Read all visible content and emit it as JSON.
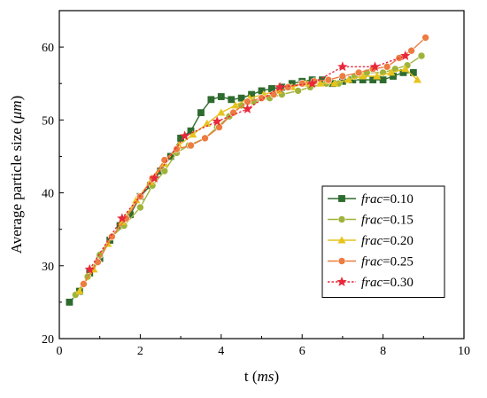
{
  "chart_data": {
    "type": "line",
    "title": "",
    "xlabel": {
      "prefix": "t (",
      "italic": "ms",
      "suffix": ")"
    },
    "ylabel": {
      "prefix": "Average particle size (",
      "italic": "μm",
      "suffix": ")"
    },
    "xlim": [
      0,
      10
    ],
    "ylim": [
      20,
      65
    ],
    "xticks": [
      0,
      2,
      4,
      6,
      8,
      10
    ],
    "yticks": [
      20,
      30,
      40,
      50,
      60
    ],
    "grid": false,
    "legend_position": "right-middle",
    "series": [
      {
        "name_italic": "frac",
        "name_rest": "=0.10",
        "color": "#2e6b2e",
        "marker": "square",
        "dashed": false,
        "points": [
          [
            0.25,
            25.0
          ],
          [
            0.5,
            26.5
          ],
          [
            0.75,
            29.0
          ],
          [
            1.0,
            31.0
          ],
          [
            1.25,
            33.5
          ],
          [
            1.5,
            35.5
          ],
          [
            1.75,
            37.0
          ],
          [
            2.0,
            39.5
          ],
          [
            2.25,
            41.0
          ],
          [
            2.5,
            43.0
          ],
          [
            2.75,
            45.0
          ],
          [
            3.0,
            47.5
          ],
          [
            3.25,
            48.5
          ],
          [
            3.5,
            51.0
          ],
          [
            3.75,
            52.8
          ],
          [
            4.0,
            53.2
          ],
          [
            4.25,
            52.8
          ],
          [
            4.5,
            53.0
          ],
          [
            4.75,
            53.5
          ],
          [
            5.0,
            54.0
          ],
          [
            5.25,
            54.3
          ],
          [
            5.5,
            54.5
          ],
          [
            5.75,
            55.0
          ],
          [
            6.0,
            55.3
          ],
          [
            6.25,
            55.5
          ],
          [
            6.5,
            55.5
          ],
          [
            6.75,
            55.0
          ],
          [
            7.0,
            55.3
          ],
          [
            7.25,
            55.5
          ],
          [
            7.5,
            55.5
          ],
          [
            7.75,
            55.5
          ],
          [
            8.0,
            55.5
          ],
          [
            8.25,
            56.0
          ],
          [
            8.5,
            56.5
          ],
          [
            8.75,
            56.5
          ]
        ]
      },
      {
        "name_italic": "frac",
        "name_rest": "=0.15",
        "color": "#9fb33a",
        "marker": "circle",
        "dashed": false,
        "points": [
          [
            0.4,
            26.0
          ],
          [
            0.7,
            28.5
          ],
          [
            1.0,
            31.5
          ],
          [
            1.3,
            34.0
          ],
          [
            1.6,
            35.5
          ],
          [
            2.0,
            38.0
          ],
          [
            2.3,
            41.0
          ],
          [
            2.6,
            43.0
          ],
          [
            2.9,
            45.5
          ],
          [
            3.2,
            46.5
          ],
          [
            3.6,
            47.5
          ],
          [
            3.9,
            49.0
          ],
          [
            4.2,
            50.5
          ],
          [
            4.5,
            52.0
          ],
          [
            4.8,
            52.5
          ],
          [
            5.2,
            53.0
          ],
          [
            5.5,
            53.5
          ],
          [
            5.9,
            54.0
          ],
          [
            6.2,
            54.5
          ],
          [
            6.6,
            55.0
          ],
          [
            6.9,
            55.0
          ],
          [
            7.3,
            56.0
          ],
          [
            7.6,
            56.5
          ],
          [
            8.0,
            56.5
          ],
          [
            8.3,
            57.0
          ],
          [
            8.6,
            57.5
          ],
          [
            8.95,
            58.8
          ]
        ]
      },
      {
        "name_italic": "frac",
        "name_rest": "=0.20",
        "color": "#e6c41e",
        "marker": "triangle",
        "dashed": false,
        "points": [
          [
            0.5,
            26.5
          ],
          [
            0.85,
            29.5
          ],
          [
            1.2,
            33.0
          ],
          [
            1.55,
            36.0
          ],
          [
            1.9,
            39.0
          ],
          [
            2.25,
            41.5
          ],
          [
            2.6,
            44.0
          ],
          [
            2.95,
            46.5
          ],
          [
            3.3,
            48.0
          ],
          [
            3.65,
            49.5
          ],
          [
            4.0,
            51.0
          ],
          [
            4.35,
            52.0
          ],
          [
            4.7,
            53.0
          ],
          [
            5.05,
            53.5
          ],
          [
            5.4,
            54.0
          ],
          [
            5.75,
            54.5
          ],
          [
            6.1,
            55.0
          ],
          [
            6.45,
            55.0
          ],
          [
            6.8,
            55.0
          ],
          [
            7.15,
            55.5
          ],
          [
            7.5,
            56.0
          ],
          [
            7.85,
            56.0
          ],
          [
            8.2,
            56.5
          ],
          [
            8.55,
            57.0
          ],
          [
            8.85,
            55.5
          ]
        ]
      },
      {
        "name_italic": "frac",
        "name_rest": "=0.25",
        "color": "#ec7c40",
        "marker": "circle",
        "dashed": false,
        "points": [
          [
            0.6,
            27.5
          ],
          [
            0.95,
            30.5
          ],
          [
            1.3,
            34.0
          ],
          [
            1.65,
            36.5
          ],
          [
            2.0,
            39.5
          ],
          [
            2.3,
            42.0
          ],
          [
            2.6,
            44.5
          ],
          [
            2.9,
            46.0
          ],
          [
            3.25,
            46.5
          ],
          [
            3.6,
            47.5
          ],
          [
            3.95,
            49.0
          ],
          [
            4.3,
            51.0
          ],
          [
            4.65,
            52.5
          ],
          [
            5.0,
            53.0
          ],
          [
            5.3,
            53.5
          ],
          [
            5.65,
            54.5
          ],
          [
            6.0,
            55.0
          ],
          [
            6.3,
            55.3
          ],
          [
            6.65,
            55.5
          ],
          [
            7.0,
            56.0
          ],
          [
            7.4,
            56.5
          ],
          [
            7.75,
            57.0
          ],
          [
            8.1,
            57.3
          ],
          [
            8.4,
            58.5
          ],
          [
            8.7,
            59.5
          ],
          [
            9.05,
            61.3
          ]
        ]
      },
      {
        "name_italic": "frac",
        "name_rest": "=0.30",
        "color": "#e8283a",
        "marker": "star",
        "dashed": true,
        "points": [
          [
            0.75,
            29.5
          ],
          [
            1.55,
            36.5
          ],
          [
            2.35,
            42.0
          ],
          [
            3.1,
            47.8
          ],
          [
            3.9,
            49.8
          ],
          [
            4.65,
            51.5
          ],
          [
            5.45,
            54.5
          ],
          [
            6.25,
            55.0
          ],
          [
            7.0,
            57.3
          ],
          [
            7.8,
            57.3
          ],
          [
            8.55,
            58.8
          ]
        ]
      }
    ]
  }
}
